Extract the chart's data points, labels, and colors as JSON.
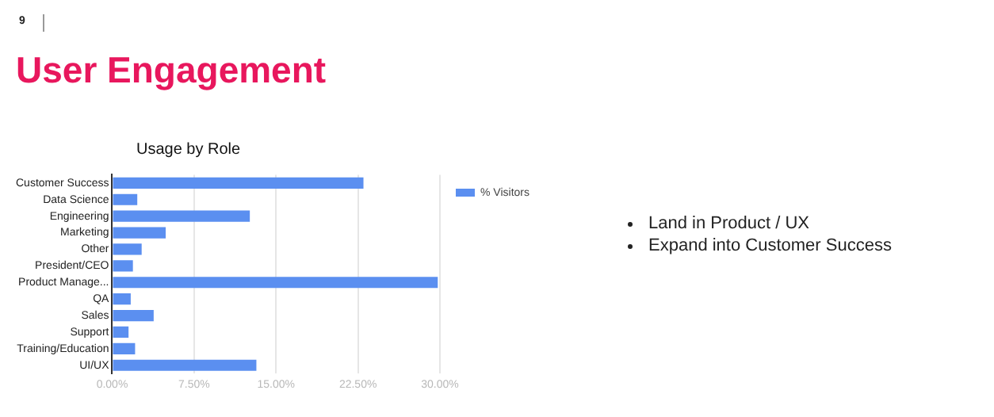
{
  "chart_data": {
    "type": "bar",
    "orientation": "horizontal",
    "title": "User Engagement",
    "subtitle": "Usage by Role",
    "categories": [
      "Customer Success",
      "Data Science",
      "Engineering",
      "Marketing",
      "Other",
      "President/CEO",
      "Product Manage...",
      "QA",
      "Sales",
      "Support",
      "Training/Education",
      "UI/UX"
    ],
    "series": [
      {
        "name": "% Visitors",
        "color": "#5b8ff0",
        "values": [
          23.0,
          2.3,
          12.6,
          4.9,
          2.7,
          1.9,
          29.8,
          1.7,
          3.8,
          1.5,
          2.1,
          13.2
        ]
      }
    ],
    "xlim": [
      0,
      30
    ],
    "xticks": [
      {
        "value": 0,
        "label": "0.00%"
      },
      {
        "value": 7.5,
        "label": "7.50%"
      },
      {
        "value": 15,
        "label": "15.00%"
      },
      {
        "value": 22.5,
        "label": "22.50%"
      },
      {
        "value": 30,
        "label": "30.00%"
      }
    ],
    "grid": "x",
    "legend": "top right",
    "annotations": [
      "9",
      "Land in Product / UX",
      "Expand into Customer Success"
    ]
  }
}
